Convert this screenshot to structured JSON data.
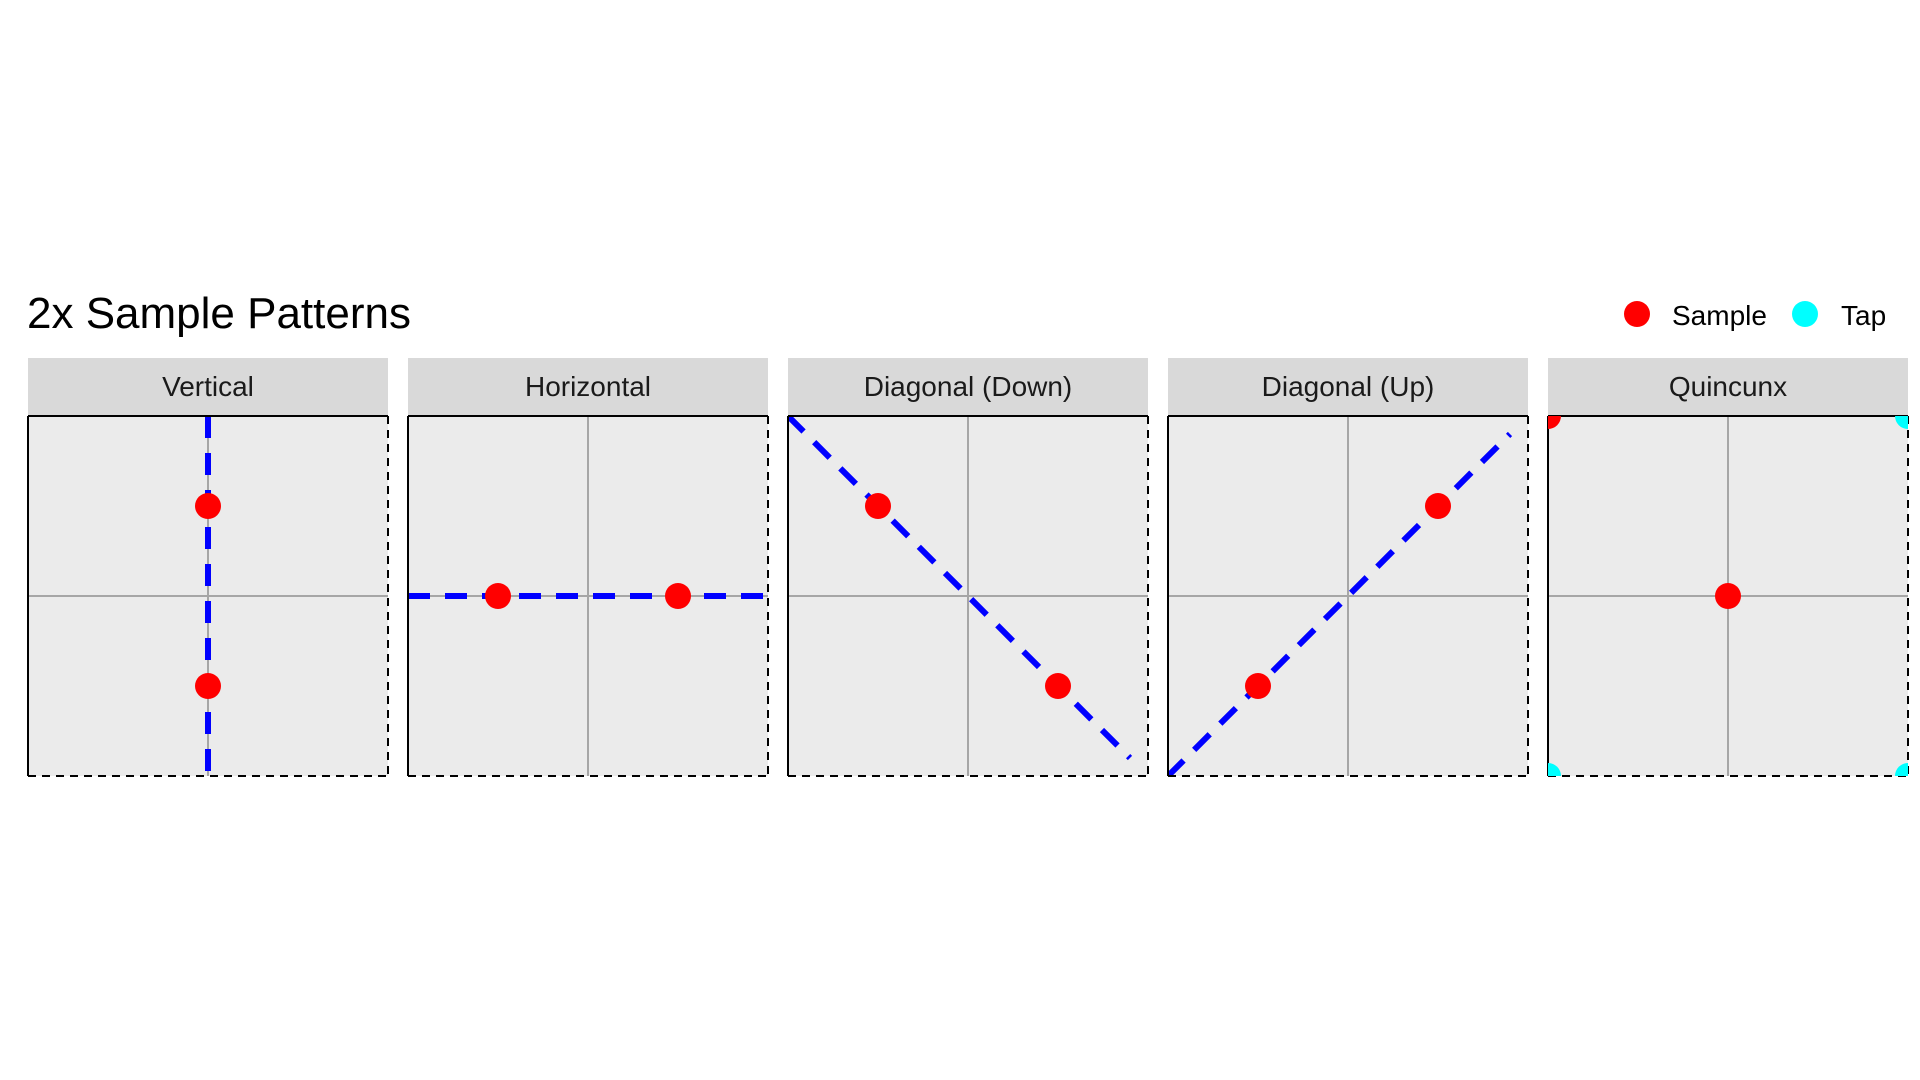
{
  "chart_data": {
    "type": "scatter",
    "title": "2x Sample Patterns",
    "xlim": [
      0,
      1
    ],
    "ylim": [
      0,
      1
    ],
    "grid": true,
    "legend": {
      "position": "top-right",
      "entries": [
        {
          "label": "Sample",
          "color": "#ff0000"
        },
        {
          "label": "Tap",
          "color": "#00ffff"
        }
      ]
    },
    "colors": {
      "sample": "#ff0000",
      "tap": "#00ffff",
      "pattern_line": "#0000ff",
      "panel_bg": "#ebebeb",
      "strip_bg": "#d9d9d9",
      "grid": "#a6a6a6"
    },
    "panels": [
      {
        "name": "Vertical",
        "samples": [
          {
            "x": 0.5,
            "y": 0.75
          },
          {
            "x": 0.5,
            "y": 0.25
          }
        ],
        "taps": [],
        "line": [
          {
            "x": 0.5,
            "y": 1.0
          },
          {
            "x": 0.5,
            "y": 0.0
          }
        ]
      },
      {
        "name": "Horizontal",
        "samples": [
          {
            "x": 0.25,
            "y": 0.5
          },
          {
            "x": 0.75,
            "y": 0.5
          }
        ],
        "taps": [],
        "line": [
          {
            "x": 0.0,
            "y": 0.5
          },
          {
            "x": 1.0,
            "y": 0.5
          }
        ]
      },
      {
        "name": "Diagonal (Down)",
        "samples": [
          {
            "x": 0.25,
            "y": 0.75
          },
          {
            "x": 0.75,
            "y": 0.25
          }
        ],
        "taps": [],
        "line": [
          {
            "x": 0.0,
            "y": 1.0
          },
          {
            "x": 0.95,
            "y": 0.05
          }
        ]
      },
      {
        "name": "Diagonal (Up)",
        "samples": [
          {
            "x": 0.25,
            "y": 0.25
          },
          {
            "x": 0.75,
            "y": 0.75
          }
        ],
        "taps": [],
        "line": [
          {
            "x": 0.0,
            "y": 0.0
          },
          {
            "x": 0.95,
            "y": 0.95
          }
        ]
      },
      {
        "name": "Quincunx",
        "samples": [
          {
            "x": 0.5,
            "y": 0.5
          },
          {
            "x": 0.0,
            "y": 1.0
          }
        ],
        "taps": [
          {
            "x": 1.0,
            "y": 1.0
          },
          {
            "x": 0.0,
            "y": 0.0
          },
          {
            "x": 1.0,
            "y": 0.0
          }
        ],
        "line": []
      }
    ]
  }
}
